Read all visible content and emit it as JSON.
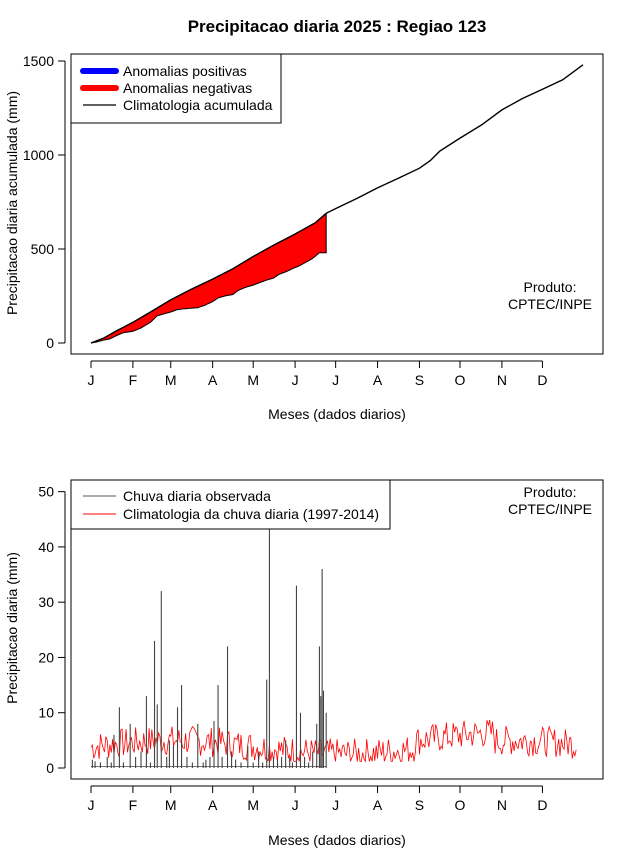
{
  "chart_data": [
    {
      "type": "area",
      "title": "Precipitacao diaria 2025 : Regiao 123",
      "xlabel": "Meses (dados diarios)",
      "ylabel": "Precipitacao diaria acumulada (mm)",
      "xlim": [
        1,
        365
      ],
      "ylim": [
        0,
        1500
      ],
      "x_ticks": [
        {
          "day": 1,
          "label": "J"
        },
        {
          "day": 32,
          "label": "F"
        },
        {
          "day": 60,
          "label": "M"
        },
        {
          "day": 91,
          "label": "A"
        },
        {
          "day": 121,
          "label": "M"
        },
        {
          "day": 152,
          "label": "J"
        },
        {
          "day": 182,
          "label": "J"
        },
        {
          "day": 213,
          "label": "A"
        },
        {
          "day": 244,
          "label": "S"
        },
        {
          "day": 274,
          "label": "O"
        },
        {
          "day": 305,
          "label": "N"
        },
        {
          "day": 335,
          "label": "D"
        }
      ],
      "y_ticks": [
        0,
        500,
        1000,
        1500
      ],
      "legend": {
        "position": "top-left",
        "entries": [
          {
            "label": "Anomalias positivas",
            "color": "#0000ff"
          },
          {
            "label": "Anomalias negativas",
            "color": "#ff0000"
          },
          {
            "label": "Climatologia acumulada",
            "color": "#000000"
          }
        ]
      },
      "note": [
        "Produto:",
        "CPTEC/INPE"
      ],
      "climatology_cumulative": {
        "x": [
          1,
          10,
          20,
          32,
          45,
          60,
          75,
          91,
          106,
          121,
          136,
          152,
          167,
          175,
          182,
          198,
          213,
          228,
          244,
          252,
          259,
          274,
          290,
          305,
          320,
          335,
          350,
          365
        ],
        "y": [
          0,
          25,
          65,
          110,
          165,
          230,
          285,
          340,
          395,
          460,
          520,
          580,
          640,
          690,
          715,
          770,
          825,
          875,
          930,
          970,
          1020,
          1090,
          1160,
          1240,
          1300,
          1350,
          1400,
          1480
        ]
      },
      "observed_cumulative": {
        "x": [
          1,
          5,
          10,
          15,
          20,
          25,
          32,
          38,
          45,
          50,
          55,
          60,
          65,
          70,
          75,
          80,
          85,
          91,
          95,
          100,
          106,
          110,
          115,
          121,
          126,
          131,
          136,
          140,
          145,
          150,
          155,
          160,
          165,
          170,
          175
        ],
        "y": [
          0,
          5,
          15,
          22,
          40,
          55,
          62,
          80,
          110,
          145,
          155,
          165,
          178,
          182,
          185,
          188,
          200,
          220,
          240,
          250,
          258,
          280,
          295,
          308,
          322,
          335,
          345,
          365,
          378,
          395,
          410,
          430,
          450,
          480,
          480
        ]
      },
      "anomaly_end_day": 175
    },
    {
      "type": "line",
      "title": "",
      "xlabel": "Meses (dados diarios)",
      "ylabel": "Precipitacao diaria (mm)",
      "xlim": [
        1,
        365
      ],
      "ylim": [
        0,
        55
      ],
      "y_ticks": [
        0,
        10,
        20,
        30,
        40,
        50
      ],
      "legend": {
        "position": "top-left",
        "entries": [
          {
            "label": "Chuva diaria observada",
            "color": "#555555"
          },
          {
            "label": "Climatologia da chuva diaria (1997-2014)",
            "color": "#ff0000"
          }
        ]
      },
      "note": [
        "Produto:",
        "CPTEC/INPE"
      ],
      "observed_daily": {
        "x": [
          2,
          4,
          8,
          13,
          16,
          18,
          22,
          25,
          30,
          34,
          38,
          42,
          45,
          48,
          50,
          53,
          57,
          59,
          62,
          65,
          68,
          72,
          76,
          80,
          84,
          86,
          89,
          92,
          95,
          98,
          102,
          105,
          108,
          112,
          117,
          121,
          125,
          128,
          131,
          133,
          136,
          139,
          142,
          145,
          148,
          150,
          153,
          156,
          159,
          162,
          165,
          168,
          170,
          171,
          172,
          173,
          175
        ],
        "y": [
          1.5,
          1.2,
          1,
          2,
          1,
          6,
          11,
          1,
          8,
          2,
          3,
          13,
          1,
          23,
          11.5,
          32,
          2,
          5,
          4,
          11,
          15,
          2,
          1,
          8,
          1,
          1.5,
          2,
          8.5,
          15,
          2,
          22,
          3,
          1.5,
          1,
          4,
          1,
          3,
          1,
          16,
          49,
          2,
          1.5,
          2,
          5,
          2,
          1,
          33,
          10,
          2,
          1,
          3,
          8,
          22,
          13,
          36,
          14,
          10
        ]
      },
      "climatology_daily_note": "daily climatology ~2-10 mm"
    }
  ]
}
